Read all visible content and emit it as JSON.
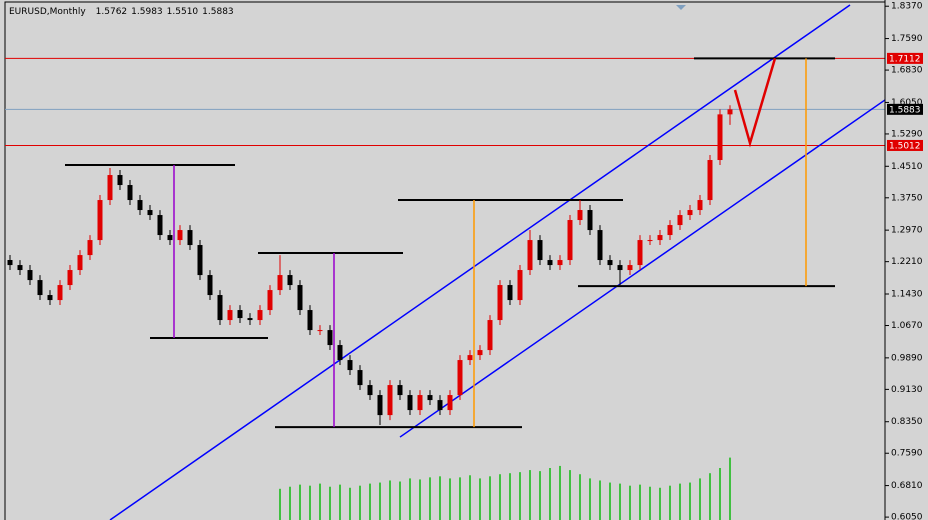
{
  "chart_data": {
    "type": "candlestick",
    "title": "EURUSD,Monthly",
    "ohlc_labels": [
      "1.5762",
      "1.5983",
      "1.5510",
      "1.5883"
    ],
    "bull_color": "#e00000",
    "bear_color": "#000000",
    "open": [
      1.225,
      1.2128,
      1.2008,
      1.1766,
      1.1405,
      1.1284,
      1.1646,
      1.2008,
      1.2369,
      1.2731,
      1.3696,
      1.4299,
      1.4058,
      1.3696,
      1.3455,
      1.3334,
      1.2852,
      1.2731,
      1.2972,
      1.2611,
      1.1887,
      1.1405,
      1.0802,
      1.1043,
      1.085,
      1.0802,
      1.1043,
      1.1525,
      1.1887,
      1.1646,
      1.1043,
      1.056,
      1.056,
      1.0199,
      0.9837,
      0.9596,
      0.9234,
      0.8993,
      0.851,
      0.9234,
      0.8993,
      0.8631,
      0.8993,
      0.8872,
      0.8631,
      0.8993,
      0.9837,
      0.9957,
      1.0078,
      1.0802,
      1.1646,
      1.1284,
      1.2008,
      1.2731,
      1.2249,
      1.2128,
      1.2249,
      1.3214,
      1.3455,
      1.2972,
      1.2249,
      1.2128,
      1.2008,
      1.2128,
      1.2731,
      1.2731,
      1.2852,
      1.3093,
      1.3334,
      1.3455,
      1.3696,
      1.4661,
      1.5762
    ],
    "high": [
      1.237,
      1.2248,
      1.2128,
      1.1886,
      1.1525,
      1.1766,
      1.2128,
      1.2489,
      1.2851,
      1.3816,
      1.447,
      1.4419,
      1.4178,
      1.3816,
      1.3575,
      1.3454,
      1.2972,
      1.3092,
      1.3092,
      1.2731,
      1.2007,
      1.1525,
      1.1163,
      1.1163,
      1.097,
      1.1163,
      1.1645,
      1.2369,
      1.2007,
      1.1766,
      1.1163,
      1.068,
      1.068,
      1.0319,
      0.9957,
      0.9716,
      0.9354,
      0.9113,
      0.9354,
      0.9354,
      0.9113,
      0.9113,
      0.9113,
      0.8992,
      0.9113,
      0.9957,
      1.0077,
      1.0198,
      1.0922,
      1.1766,
      1.1766,
      1.2128,
      1.2972,
      1.2851,
      1.2369,
      1.2369,
      1.3334,
      1.3696,
      1.3575,
      1.3092,
      1.2369,
      1.2248,
      1.2248,
      1.2851,
      1.2851,
      1.2972,
      1.3213,
      1.3454,
      1.3575,
      1.3816,
      1.4781,
      1.5882,
      1.5983
    ],
    "low": [
      1.2008,
      1.1888,
      1.1646,
      1.1285,
      1.1164,
      1.1164,
      1.1526,
      1.1888,
      1.2249,
      1.2611,
      1.3576,
      1.3938,
      1.3576,
      1.3335,
      1.3214,
      1.2732,
      1.2611,
      1.2611,
      1.2491,
      1.1767,
      1.1285,
      1.0682,
      1.0682,
      1.073,
      1.0682,
      1.0682,
      1.0923,
      1.1405,
      1.1526,
      1.0923,
      1.044,
      1.044,
      1.0079,
      0.9717,
      0.9476,
      0.9114,
      0.8873,
      0.827,
      0.839,
      0.8873,
      0.8511,
      0.8511,
      0.8752,
      0.8511,
      0.8511,
      0.8873,
      0.9717,
      0.9837,
      0.9958,
      1.0682,
      1.1164,
      1.1164,
      1.1888,
      1.2129,
      1.2008,
      1.2008,
      1.2129,
      1.3094,
      1.2852,
      1.2129,
      1.2008,
      1.1646,
      1.1888,
      1.2008,
      1.2611,
      1.2611,
      1.2732,
      1.2973,
      1.3214,
      1.3335,
      1.3576,
      1.4541,
      1.551
    ],
    "close": [
      1.2128,
      1.2008,
      1.1766,
      1.1405,
      1.1284,
      1.1646,
      1.2008,
      1.2369,
      1.2731,
      1.3696,
      1.4299,
      1.4058,
      1.3696,
      1.3455,
      1.3334,
      1.2852,
      1.2731,
      1.2972,
      1.2611,
      1.1887,
      1.1405,
      1.0802,
      1.1043,
      1.085,
      1.0802,
      1.1043,
      1.1525,
      1.1887,
      1.1646,
      1.1043,
      1.056,
      1.056,
      1.0199,
      0.9837,
      0.9596,
      0.9234,
      0.8993,
      0.851,
      0.9234,
      0.8993,
      0.8631,
      0.8993,
      0.8872,
      0.8631,
      0.8993,
      0.9837,
      0.9957,
      1.0078,
      1.0802,
      1.1646,
      1.1284,
      1.2008,
      1.2731,
      1.2249,
      1.2128,
      1.2249,
      1.3214,
      1.3455,
      1.2972,
      1.2249,
      1.2128,
      1.2008,
      1.2128,
      1.2731,
      1.2731,
      1.2852,
      1.3093,
      1.3334,
      1.3455,
      1.3696,
      1.4661,
      1.5762,
      1.5883
    ],
    "volume": [
      null,
      null,
      null,
      null,
      null,
      null,
      null,
      null,
      null,
      null,
      null,
      null,
      null,
      null,
      null,
      null,
      null,
      null,
      null,
      null,
      null,
      null,
      null,
      null,
      null,
      null,
      null,
      30,
      32,
      34,
      33,
      35,
      32,
      34,
      31,
      33,
      35,
      36,
      38,
      37,
      40,
      39,
      41,
      42,
      40,
      41,
      43,
      40,
      42,
      44,
      45,
      46,
      48,
      47,
      50,
      52,
      48,
      44,
      40,
      38,
      36,
      35,
      33,
      34,
      32,
      31,
      33,
      35,
      36,
      40,
      45,
      50,
      60
    ],
    "volume_color": "#40c040",
    "volume_ylim": [
      0,
      500
    ],
    "ylim": [
      0.598,
      1.852
    ],
    "yticks": [
      {
        "value": 1.837,
        "label": "1.8370"
      },
      {
        "value": 1.759,
        "label": "1.7590"
      },
      {
        "value": 1.683,
        "label": "1.6830"
      },
      {
        "value": 1.605,
        "label": "1.6050"
      },
      {
        "value": 1.529,
        "label": "1.5290"
      },
      {
        "value": 1.451,
        "label": "1.4510"
      },
      {
        "value": 1.375,
        "label": "1.3750"
      },
      {
        "value": 1.297,
        "label": "1.2970"
      },
      {
        "value": 1.221,
        "label": "1.2210"
      },
      {
        "value": 1.143,
        "label": "1.1430"
      },
      {
        "value": 1.067,
        "label": "1.0670"
      },
      {
        "value": 0.989,
        "label": "0.9890"
      },
      {
        "value": 0.913,
        "label": "0.9130"
      },
      {
        "value": 0.835,
        "label": "0.8350"
      },
      {
        "value": 0.759,
        "label": "0.7590"
      },
      {
        "value": 0.681,
        "label": "0.6810"
      },
      {
        "value": 0.605,
        "label": "0.6050"
      }
    ],
    "hlines": [
      {
        "value": 1.7112,
        "color": "#e00000",
        "tag_color": "#e00000"
      },
      {
        "value": 1.5883,
        "color": "#7f9fbf",
        "tag_color": "#000000"
      },
      {
        "value": 1.5012,
        "color": "#e00000",
        "tag_color": "#e00000"
      }
    ],
    "drawings": [
      {
        "color": "#0000ff",
        "x": [
          10,
          84
        ],
        "y": [
          0.598,
          1.84
        ]
      },
      {
        "color": "#0000ff",
        "x": [
          39,
          87.5
        ],
        "y": [
          0.798,
          1.611
        ]
      },
      {
        "color": "#000000",
        "x": [
          5.5,
          22.5
        ],
        "y": [
          1.454,
          1.454
        ]
      },
      {
        "color": "#000000",
        "x": [
          14,
          25.8
        ],
        "y": [
          1.0368,
          1.0368
        ]
      },
      {
        "color": "#000000",
        "x": [
          24.8,
          39.3
        ],
        "y": [
          1.2418,
          1.2418
        ]
      },
      {
        "color": "#000000",
        "x": [
          26.5,
          51.2
        ],
        "y": [
          0.8221,
          0.8221
        ]
      },
      {
        "color": "#000000",
        "x": [
          38.8,
          61.3
        ],
        "y": [
          1.3696,
          1.3696
        ]
      },
      {
        "color": "#000000",
        "x": [
          56.8,
          82.5
        ],
        "y": [
          1.162,
          1.162
        ]
      },
      {
        "color": "#000000",
        "x": [
          68.4,
          82.5
        ],
        "y": [
          1.7112,
          1.7112
        ]
      },
      {
        "color": "#9900cc",
        "x": [
          16.4,
          16.4
        ],
        "y": [
          1.454,
          1.0368
        ]
      },
      {
        "color": "#9900cc",
        "x": [
          32.4,
          32.4
        ],
        "y": [
          1.2418,
          0.8221
        ]
      },
      {
        "color": "#ff9900",
        "x": [
          46.4,
          46.4
        ],
        "y": [
          1.3696,
          0.8221
        ]
      },
      {
        "color": "#ff9900",
        "x": [
          79.6,
          79.6
        ],
        "y": [
          1.7112,
          1.162
        ]
      },
      {
        "color": "#e00000",
        "x": [
          72.5,
          74,
          76.5
        ],
        "y": [
          1.635,
          1.507,
          1.7112
        ]
      }
    ]
  }
}
